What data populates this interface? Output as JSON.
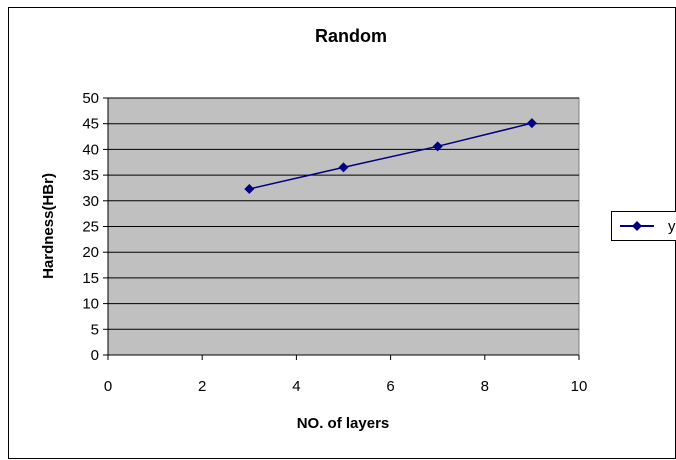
{
  "chart_data": {
    "type": "scatter",
    "title": "Random",
    "xlabel": "NO. of layers",
    "ylabel": "Hardness(HBr)",
    "xlim": [
      0,
      10
    ],
    "ylim": [
      0,
      50
    ],
    "xticks": [
      0,
      2,
      4,
      6,
      8,
      10
    ],
    "yticks": [
      0,
      5,
      10,
      15,
      20,
      25,
      30,
      35,
      40,
      45,
      50
    ],
    "grid": "horizontal",
    "legend_position": "right",
    "plot_background": "#c0c0c0",
    "series": [
      {
        "name": "y",
        "color": "#000080",
        "marker": "diamond",
        "x": [
          3,
          5,
          7,
          9
        ],
        "y": [
          32.3,
          36.5,
          40.6,
          45.1
        ]
      }
    ]
  }
}
